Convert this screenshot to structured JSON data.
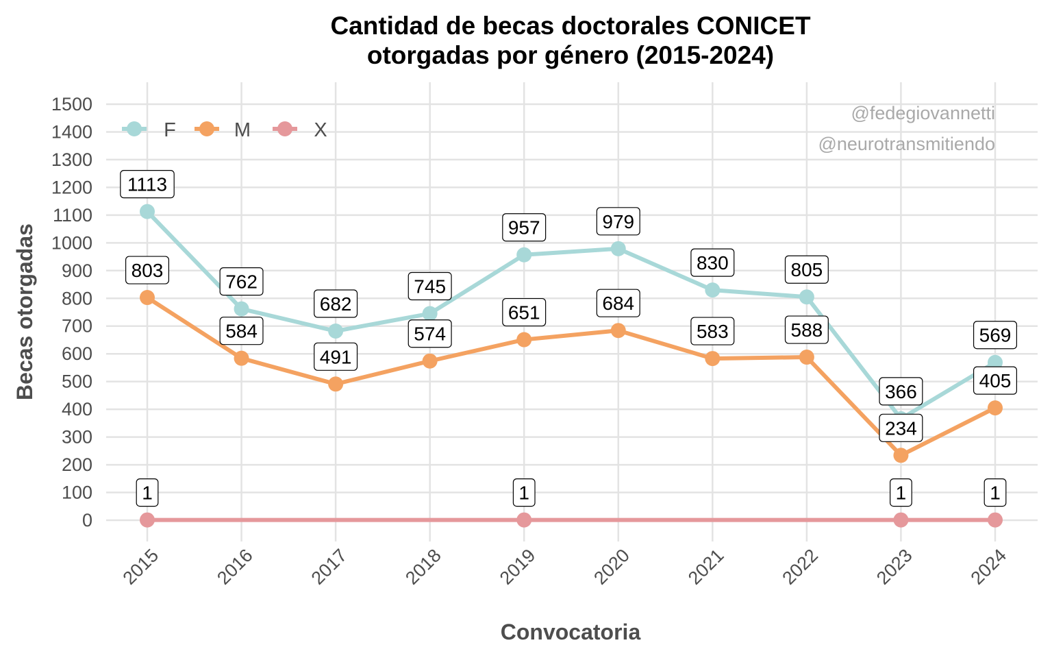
{
  "chart_data": {
    "type": "line",
    "title": [
      "Cantidad de becas doctorales CONICET",
      "otorgadas por género (2015-2024)"
    ],
    "xlabel": "Convocatoria",
    "ylabel": "Becas otorgadas",
    "x": [
      "2015",
      "2016",
      "2017",
      "2018",
      "2019",
      "2020",
      "2021",
      "2022",
      "2023",
      "2024"
    ],
    "ylim": [
      0,
      1500
    ],
    "yticks": [
      "0",
      "100",
      "200",
      "300",
      "400",
      "500",
      "600",
      "700",
      "800",
      "900",
      "1000",
      "1100",
      "1200",
      "1300",
      "1400",
      "1500"
    ],
    "grid": true,
    "legend_position": "top-left",
    "series": [
      {
        "name": "F",
        "color": "#A8D8D8",
        "x": [
          "2015",
          "2016",
          "2017",
          "2018",
          "2019",
          "2020",
          "2021",
          "2022",
          "2023",
          "2024"
        ],
        "values": [
          1113,
          762,
          682,
          745,
          957,
          979,
          830,
          805,
          366,
          569
        ]
      },
      {
        "name": "M",
        "color": "#F4A261",
        "x": [
          "2015",
          "2016",
          "2017",
          "2018",
          "2019",
          "2020",
          "2021",
          "2022",
          "2023",
          "2024"
        ],
        "values": [
          803,
          584,
          491,
          574,
          651,
          684,
          583,
          588,
          234,
          405
        ]
      },
      {
        "name": "X",
        "color": "#E5989B",
        "x": [
          "2015",
          "2019",
          "2023",
          "2024"
        ],
        "values": [
          1,
          1,
          1,
          1
        ]
      }
    ],
    "annotations": [
      "@fedegiovannetti",
      "@neurotransmitiendo"
    ]
  }
}
